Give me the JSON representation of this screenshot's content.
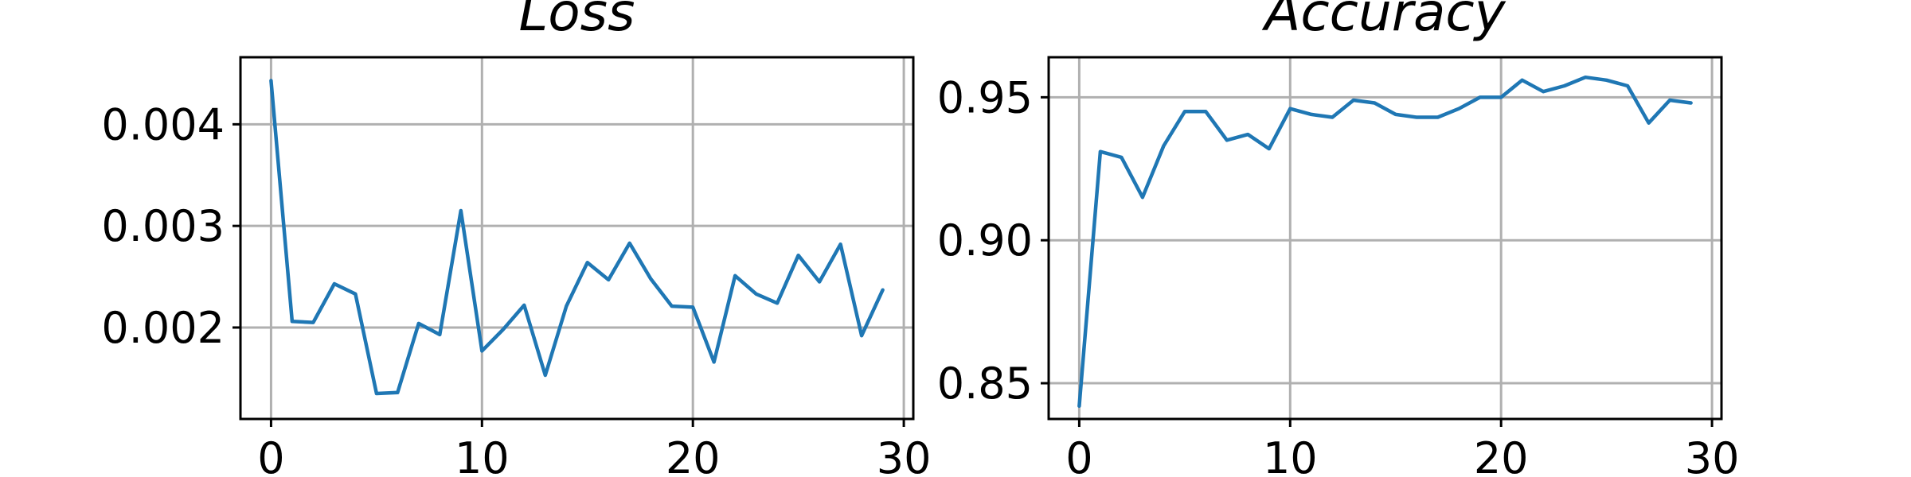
{
  "chart_data": [
    {
      "type": "line",
      "title": "Loss",
      "xlabel": "",
      "ylabel": "",
      "grid": true,
      "xlim": [
        -1.45,
        30.45
      ],
      "ylim": [
        0.0011,
        0.00466
      ],
      "xticks": [
        0,
        10,
        20,
        30
      ],
      "xtick_labels": [
        "0",
        "10",
        "20",
        "30"
      ],
      "yticks": [
        0.002,
        0.003,
        0.004
      ],
      "ytick_labels": [
        "0.002",
        "0.003",
        "0.004"
      ],
      "series": [
        {
          "color": "#1f77b4",
          "x": [
            0,
            1,
            2,
            3,
            4,
            5,
            6,
            7,
            8,
            9,
            10,
            11,
            12,
            13,
            14,
            15,
            16,
            17,
            18,
            19,
            20,
            21,
            22,
            23,
            24,
            25,
            26,
            27,
            28,
            29
          ],
          "values": [
            0.00443,
            0.00206,
            0.00205,
            0.00243,
            0.00233,
            0.00135,
            0.00136,
            0.00204,
            0.00193,
            0.00315,
            0.00177,
            0.00198,
            0.00222,
            0.00153,
            0.00221,
            0.00264,
            0.00247,
            0.00283,
            0.00248,
            0.00221,
            0.0022,
            0.00166,
            0.00251,
            0.00233,
            0.00224,
            0.00271,
            0.00245,
            0.00282,
            0.00192,
            0.00237
          ]
        }
      ]
    },
    {
      "type": "line",
      "title": "Accuracy",
      "xlabel": "",
      "ylabel": "",
      "grid": true,
      "xlim": [
        -1.45,
        30.45
      ],
      "ylim": [
        0.8375,
        0.964
      ],
      "xticks": [
        0,
        10,
        20,
        30
      ],
      "xtick_labels": [
        "0",
        "10",
        "20",
        "30"
      ],
      "yticks": [
        0.85,
        0.9,
        0.95
      ],
      "ytick_labels": [
        "0.85",
        "0.90",
        "0.95"
      ],
      "series": [
        {
          "color": "#1f77b4",
          "x": [
            0,
            1,
            2,
            3,
            4,
            5,
            6,
            7,
            8,
            9,
            10,
            11,
            12,
            13,
            14,
            15,
            16,
            17,
            18,
            19,
            20,
            21,
            22,
            23,
            24,
            25,
            26,
            27,
            28,
            29
          ],
          "values": [
            0.842,
            0.931,
            0.929,
            0.915,
            0.933,
            0.945,
            0.945,
            0.935,
            0.937,
            0.932,
            0.946,
            0.944,
            0.943,
            0.949,
            0.948,
            0.944,
            0.943,
            0.943,
            0.946,
            0.95,
            0.95,
            0.956,
            0.952,
            0.954,
            0.957,
            0.956,
            0.954,
            0.941,
            0.949,
            0.948
          ]
        }
      ]
    }
  ]
}
